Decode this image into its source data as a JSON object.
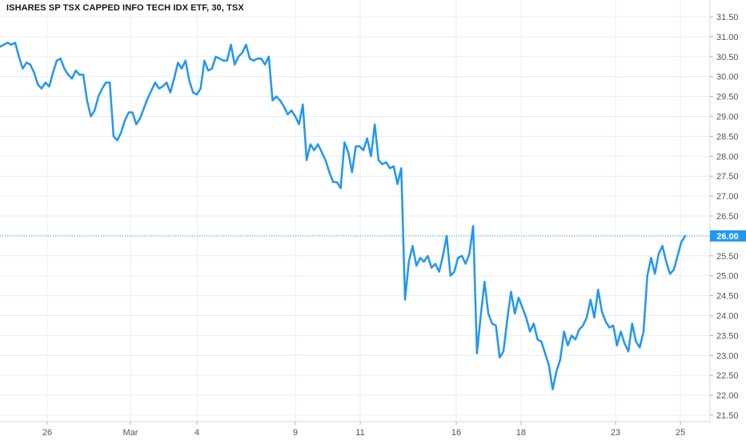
{
  "chart_data": {
    "type": "line",
    "title": "ISHARES SP TSX CAPPED INFO TECH IDX ETF, 30, TSX",
    "xlabel": "",
    "ylabel": "",
    "x_ticks": [
      "26",
      "Mar",
      "4",
      "9",
      "11",
      "16",
      "18",
      "23",
      "25"
    ],
    "y_ticks": [
      "31.50",
      "31.00",
      "30.50",
      "30.00",
      "29.50",
      "29.00",
      "28.50",
      "28.00",
      "27.50",
      "27.00",
      "26.50",
      "26.00",
      "25.50",
      "25.00",
      "24.50",
      "24.00",
      "23.50",
      "23.00",
      "22.50",
      "22.00",
      "21.50"
    ],
    "ylim": [
      21.25,
      31.75
    ],
    "grid": true,
    "last_price": 26.0,
    "last_price_label": "26.00",
    "colors": {
      "line": "#2196f3",
      "grid": "#e9ecf1",
      "price_badge": "#2196f3"
    },
    "series": [
      {
        "values": [
          30.75,
          30.8,
          30.85,
          30.8,
          30.85,
          30.5,
          30.2,
          30.35,
          30.3,
          30.1,
          29.8,
          29.7,
          29.85,
          29.75,
          30.1,
          30.4,
          30.45,
          30.2,
          30.05,
          29.95,
          30.15,
          30.05,
          30.05,
          29.4,
          29.0,
          29.15,
          29.5,
          29.7,
          29.85,
          29.85,
          28.5,
          28.4,
          28.6,
          28.9,
          29.1,
          29.1,
          28.8,
          28.95,
          29.2,
          29.45,
          29.65,
          29.85,
          29.7,
          29.75,
          29.85,
          29.6,
          29.95,
          30.35,
          30.2,
          30.4,
          29.9,
          29.6,
          29.55,
          29.7,
          30.4,
          30.15,
          30.2,
          30.5,
          30.45,
          30.4,
          30.4,
          30.8,
          30.3,
          30.5,
          30.6,
          30.8,
          30.45,
          30.4,
          30.45,
          30.45,
          30.3,
          30.5,
          29.4,
          29.5,
          29.4,
          29.25,
          29.05,
          29.15,
          29.0,
          28.8,
          29.3,
          27.9,
          28.3,
          28.15,
          28.3,
          28.1,
          27.9,
          27.6,
          27.35,
          27.35,
          27.2,
          28.35,
          28.1,
          27.6,
          28.25,
          28.25,
          28.15,
          28.45,
          28.0,
          28.8,
          27.9,
          27.8,
          27.85,
          27.7,
          27.75,
          27.3,
          27.7,
          24.4,
          25.35,
          25.75,
          25.25,
          25.45,
          25.35,
          25.5,
          25.2,
          25.3,
          25.1,
          25.5,
          26.0,
          25.0,
          25.1,
          25.45,
          25.5,
          25.3,
          25.55,
          26.25,
          23.05,
          24.0,
          24.85,
          24.05,
          23.8,
          23.75,
          22.95,
          23.1,
          23.9,
          24.6,
          24.05,
          24.45,
          24.2,
          23.95,
          23.6,
          23.8,
          23.4,
          23.35,
          23.05,
          22.75,
          22.15,
          22.6,
          22.9,
          23.6,
          23.25,
          23.5,
          23.4,
          23.65,
          23.75,
          23.95,
          24.4,
          23.95,
          24.65,
          24.1,
          23.85,
          23.7,
          23.75,
          23.25,
          23.6,
          23.3,
          23.1,
          23.8,
          23.35,
          23.2,
          23.6,
          25.0,
          25.45,
          25.05,
          25.55,
          25.75,
          25.35,
          25.05,
          25.15,
          25.5,
          25.85,
          26.0
        ]
      }
    ]
  }
}
